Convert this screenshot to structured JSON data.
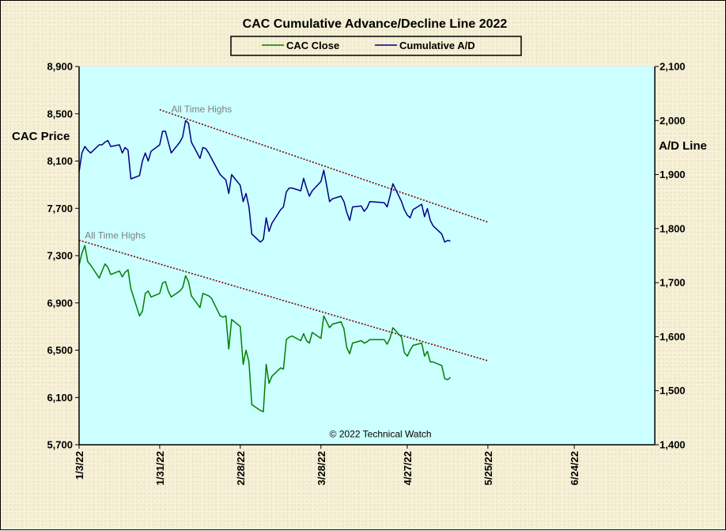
{
  "chart_data": {
    "type": "line",
    "title": "CAC Cumulative  Advance/Decline  Line  2022",
    "ylabel_left": "CAC Price",
    "ylabel_right": "A/D Line",
    "ylim_left": [
      5700,
      8900
    ],
    "ylim_right": [
      1400,
      2100
    ],
    "yticks_left": [
      5700,
      6100,
      6500,
      6900,
      7300,
      7700,
      8100,
      8500,
      8900
    ],
    "yticks_right": [
      1400,
      1500,
      1600,
      1700,
      1800,
      1900,
      2000,
      2100
    ],
    "yticks_left_labels": [
      "5,700",
      "6,100",
      "6,500",
      "6,900",
      "7,300",
      "7,700",
      "8,100",
      "8,500",
      "8,900"
    ],
    "yticks_right_labels": [
      "1,400",
      "1,500",
      "1,600",
      "1,700",
      "1,800",
      "1,900",
      "2,000",
      "2,100"
    ],
    "xlim": [
      "2022-01-03",
      "2022-07-22"
    ],
    "xticks": [
      "1/3/22",
      "1/31/22",
      "2/28/22",
      "3/28/22",
      "4/27/22",
      "5/25/22",
      "6/24/22"
    ],
    "xtick_dates": [
      "2022-01-03",
      "2022-01-31",
      "2022-02-28",
      "2022-03-28",
      "2022-04-27",
      "2022-05-25",
      "2022-06-24"
    ],
    "legend": [
      "CAC Close",
      "Cumulative A/D"
    ],
    "legend_placement": "top-center",
    "grid": false,
    "colors": {
      "plot_bg": "#ccffff",
      "cac_close": "#008000",
      "cumulative_ad": "#000080",
      "trendline": "#800000",
      "annotation": "#808080"
    },
    "series": [
      {
        "name": "CAC Close",
        "axis": "left",
        "x": [
          "2022-01-03",
          "2022-01-04",
          "2022-01-05",
          "2022-01-06",
          "2022-01-07",
          "2022-01-10",
          "2022-01-11",
          "2022-01-12",
          "2022-01-13",
          "2022-01-14",
          "2022-01-17",
          "2022-01-18",
          "2022-01-19",
          "2022-01-20",
          "2022-01-21",
          "2022-01-24",
          "2022-01-25",
          "2022-01-26",
          "2022-01-27",
          "2022-01-28",
          "2022-01-31",
          "2022-02-01",
          "2022-02-02",
          "2022-02-03",
          "2022-02-04",
          "2022-02-07",
          "2022-02-08",
          "2022-02-09",
          "2022-02-10",
          "2022-02-11",
          "2022-02-14",
          "2022-02-15",
          "2022-02-16",
          "2022-02-17",
          "2022-02-18",
          "2022-02-21",
          "2022-02-22",
          "2022-02-23",
          "2022-02-24",
          "2022-02-25",
          "2022-02-28",
          "2022-03-01",
          "2022-03-02",
          "2022-03-03",
          "2022-03-04",
          "2022-03-07",
          "2022-03-08",
          "2022-03-09",
          "2022-03-10",
          "2022-03-11",
          "2022-03-14",
          "2022-03-15",
          "2022-03-16",
          "2022-03-17",
          "2022-03-18",
          "2022-03-21",
          "2022-03-22",
          "2022-03-23",
          "2022-03-24",
          "2022-03-25",
          "2022-03-28",
          "2022-03-29",
          "2022-03-30",
          "2022-03-31",
          "2022-04-01",
          "2022-04-04",
          "2022-04-05",
          "2022-04-06",
          "2022-04-07",
          "2022-04-08",
          "2022-04-11",
          "2022-04-12",
          "2022-04-13",
          "2022-04-14",
          "2022-04-19",
          "2022-04-20",
          "2022-04-21",
          "2022-04-22",
          "2022-04-25",
          "2022-04-26",
          "2022-04-27",
          "2022-04-28",
          "2022-04-29",
          "2022-05-02",
          "2022-05-03",
          "2022-05-04",
          "2022-05-05",
          "2022-05-06",
          "2022-05-09",
          "2022-05-10",
          "2022-05-11",
          "2022-05-12"
        ],
        "values": [
          7220,
          7320,
          7385,
          7250,
          7220,
          7110,
          7170,
          7230,
          7200,
          7140,
          7170,
          7120,
          7160,
          7180,
          7020,
          6790,
          6830,
          6980,
          7000,
          6950,
          6980,
          7070,
          7080,
          7000,
          6950,
          7000,
          7030,
          7130,
          7080,
          6960,
          6860,
          6980,
          6970,
          6960,
          6940,
          6790,
          6780,
          6790,
          6510,
          6760,
          6700,
          6380,
          6500,
          6400,
          6040,
          5990,
          5980,
          6380,
          6220,
          6280,
          6350,
          6340,
          6590,
          6610,
          6620,
          6580,
          6640,
          6580,
          6560,
          6650,
          6600,
          6790,
          6740,
          6690,
          6720,
          6740,
          6680,
          6520,
          6470,
          6560,
          6580,
          6560,
          6570,
          6590,
          6590,
          6550,
          6600,
          6690,
          6610,
          6480,
          6450,
          6500,
          6540,
          6560,
          6450,
          6490,
          6400,
          6400,
          6370,
          6260,
          6250,
          6270
        ]
      },
      {
        "name": "Cumulative A/D",
        "axis": "right",
        "x": [
          "2022-01-03",
          "2022-01-04",
          "2022-01-05",
          "2022-01-06",
          "2022-01-07",
          "2022-01-10",
          "2022-01-11",
          "2022-01-12",
          "2022-01-13",
          "2022-01-14",
          "2022-01-17",
          "2022-01-18",
          "2022-01-19",
          "2022-01-20",
          "2022-01-21",
          "2022-01-24",
          "2022-01-25",
          "2022-01-26",
          "2022-01-27",
          "2022-01-28",
          "2022-01-31",
          "2022-02-01",
          "2022-02-02",
          "2022-02-03",
          "2022-02-04",
          "2022-02-07",
          "2022-02-08",
          "2022-02-09",
          "2022-02-10",
          "2022-02-11",
          "2022-02-14",
          "2022-02-15",
          "2022-02-16",
          "2022-02-17",
          "2022-02-18",
          "2022-02-21",
          "2022-02-22",
          "2022-02-23",
          "2022-02-24",
          "2022-02-25",
          "2022-02-28",
          "2022-03-01",
          "2022-03-02",
          "2022-03-03",
          "2022-03-04",
          "2022-03-07",
          "2022-03-08",
          "2022-03-09",
          "2022-03-10",
          "2022-03-11",
          "2022-03-14",
          "2022-03-15",
          "2022-03-16",
          "2022-03-17",
          "2022-03-18",
          "2022-03-21",
          "2022-03-22",
          "2022-03-23",
          "2022-03-24",
          "2022-03-25",
          "2022-03-28",
          "2022-03-29",
          "2022-03-30",
          "2022-03-31",
          "2022-04-01",
          "2022-04-04",
          "2022-04-05",
          "2022-04-06",
          "2022-04-07",
          "2022-04-08",
          "2022-04-11",
          "2022-04-12",
          "2022-04-13",
          "2022-04-14",
          "2022-04-19",
          "2022-04-20",
          "2022-04-21",
          "2022-04-22",
          "2022-04-25",
          "2022-04-26",
          "2022-04-27",
          "2022-04-28",
          "2022-04-29",
          "2022-05-02",
          "2022-05-03",
          "2022-05-04",
          "2022-05-05",
          "2022-05-06",
          "2022-05-09",
          "2022-05-10",
          "2022-05-11",
          "2022-05-12"
        ],
        "values": [
          1905,
          1940,
          1952,
          1945,
          1940,
          1955,
          1955,
          1960,
          1963,
          1952,
          1955,
          1940,
          1950,
          1945,
          1892,
          1898,
          1925,
          1940,
          1925,
          1943,
          1955,
          1980,
          1980,
          1960,
          1940,
          1960,
          1970,
          2000,
          1995,
          1960,
          1930,
          1950,
          1948,
          1940,
          1930,
          1900,
          1895,
          1890,
          1865,
          1900,
          1880,
          1850,
          1865,
          1840,
          1790,
          1775,
          1780,
          1820,
          1795,
          1810,
          1835,
          1840,
          1868,
          1875,
          1875,
          1870,
          1893,
          1875,
          1860,
          1870,
          1887,
          1908,
          1880,
          1850,
          1855,
          1860,
          1850,
          1830,
          1815,
          1840,
          1842,
          1832,
          1838,
          1850,
          1848,
          1840,
          1860,
          1883,
          1850,
          1835,
          1825,
          1820,
          1835,
          1845,
          1822,
          1837,
          1815,
          1805,
          1790,
          1775,
          1778,
          1777
        ]
      }
    ],
    "trendlines": [
      {
        "axis": "right",
        "x": [
          "2022-01-31",
          "2022-05-25"
        ],
        "y": [
          2020,
          1812
        ]
      },
      {
        "axis": "left",
        "x": [
          "2022-01-03",
          "2022-05-25"
        ],
        "y": [
          7430,
          6410
        ]
      }
    ],
    "annotations": [
      {
        "text": "All Time Highs",
        "axis": "right",
        "x": "2022-02-04",
        "y": 2015
      },
      {
        "text": "All Time Highs",
        "axis": "left",
        "x": "2022-01-05",
        "y": 7445
      },
      {
        "text": "© 2022 Technical  Watch",
        "axis": "left",
        "x": "2022-03-31",
        "y": 5765
      }
    ]
  }
}
